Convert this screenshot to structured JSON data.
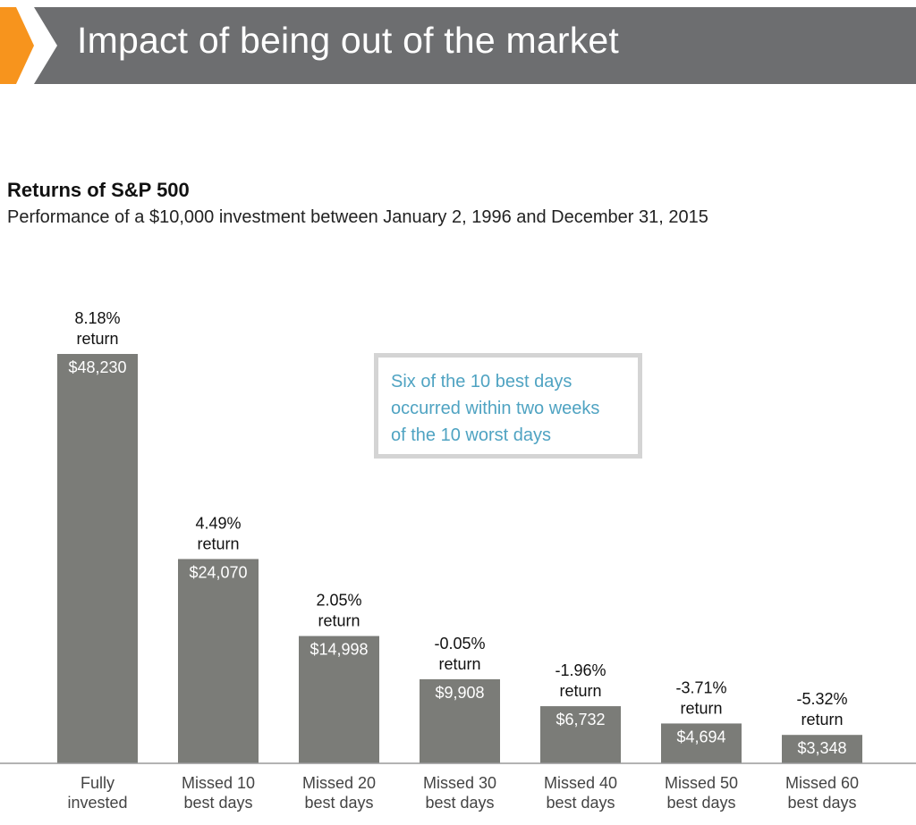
{
  "header": {
    "title": "Impact of being out of the market",
    "accent_color": "#f7941d",
    "banner_color": "#6d6e70"
  },
  "chart_title": "Returns of S&P 500",
  "chart_subtitle": "Performance of a $10,000 investment between January 2, 1996 and December 31, 2015",
  "callout": {
    "lines": [
      "Six of the 10 best days",
      "occurred within two weeks",
      "of the 10 worst days"
    ],
    "text_color": "#4fa3c2",
    "border_color": "#d4d4d4"
  },
  "chart_data": {
    "type": "bar",
    "categories": [
      [
        "Fully",
        "invested"
      ],
      [
        "Missed 10",
        "best days"
      ],
      [
        "Missed 20",
        "best days"
      ],
      [
        "Missed 30",
        "best days"
      ],
      [
        "Missed 40",
        "best days"
      ],
      [
        "Missed 50",
        "best days"
      ],
      [
        "Missed 60",
        "best days"
      ]
    ],
    "values": [
      48230,
      24070,
      14998,
      9908,
      6732,
      4694,
      3348
    ],
    "value_labels": [
      "$48,230",
      "$24,070",
      "$14,998",
      "$9,908",
      "$6,732",
      "$4,694",
      "$3,348"
    ],
    "return_labels": [
      "8.18%",
      "4.49%",
      "2.05%",
      "-0.05%",
      "-1.96%",
      "-3.71%",
      "-5.32%"
    ],
    "return_word": "return",
    "bar_color": "#7b7c78",
    "title": "Returns of S&P 500",
    "xlabel": "",
    "ylabel": "",
    "ylim": [
      0,
      50000
    ],
    "grid": false
  }
}
